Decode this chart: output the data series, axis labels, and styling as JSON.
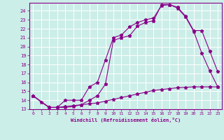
{
  "xlabel": "Windchill (Refroidissement éolien,°C)",
  "bg_color": "#cceee8",
  "grid_color": "#ffffff",
  "line_color": "#880088",
  "xlim": [
    -0.5,
    23.5
  ],
  "ylim": [
    13,
    24.9
  ],
  "yticks": [
    13,
    14,
    15,
    16,
    17,
    18,
    19,
    20,
    21,
    22,
    23,
    24
  ],
  "xticks": [
    0,
    1,
    2,
    3,
    4,
    5,
    6,
    7,
    8,
    9,
    10,
    11,
    12,
    13,
    14,
    15,
    16,
    17,
    18,
    19,
    20,
    21,
    22,
    23
  ],
  "series": [
    {
      "x": [
        0,
        1,
        2,
        3,
        4,
        5,
        6,
        7,
        8,
        9,
        10,
        11,
        12,
        13,
        14,
        15,
        16,
        17,
        18,
        19,
        20,
        21,
        22,
        23
      ],
      "y": [
        14.5,
        13.8,
        13.2,
        13.2,
        13.3,
        13.4,
        13.5,
        13.6,
        13.7,
        13.9,
        14.1,
        14.3,
        14.5,
        14.7,
        14.9,
        15.1,
        15.2,
        15.3,
        15.4,
        15.45,
        15.5,
        15.5,
        15.5,
        15.5
      ]
    },
    {
      "x": [
        0,
        2,
        3,
        4,
        5,
        6,
        7,
        8,
        9,
        10,
        11,
        12,
        13,
        14,
        15,
        16,
        17,
        18,
        19,
        20,
        21,
        22,
        23
      ],
      "y": [
        14.5,
        13.2,
        13.2,
        14.0,
        14.0,
        14.0,
        15.5,
        16.0,
        18.5,
        21.0,
        21.3,
        22.2,
        22.7,
        23.0,
        23.2,
        24.6,
        24.7,
        24.3,
        23.3,
        21.7,
        19.3,
        17.3,
        15.5
      ]
    },
    {
      "x": [
        0,
        2,
        3,
        4,
        5,
        6,
        7,
        8,
        9,
        10,
        11,
        12,
        13,
        14,
        15,
        16,
        17,
        18,
        19,
        20,
        21,
        22,
        23
      ],
      "y": [
        14.5,
        13.2,
        13.2,
        13.2,
        13.3,
        13.5,
        14.0,
        14.5,
        15.8,
        20.7,
        21.0,
        21.2,
        22.3,
        22.7,
        22.9,
        24.7,
        24.7,
        24.4,
        23.4,
        21.8,
        21.8,
        19.5,
        17.2
      ]
    }
  ]
}
